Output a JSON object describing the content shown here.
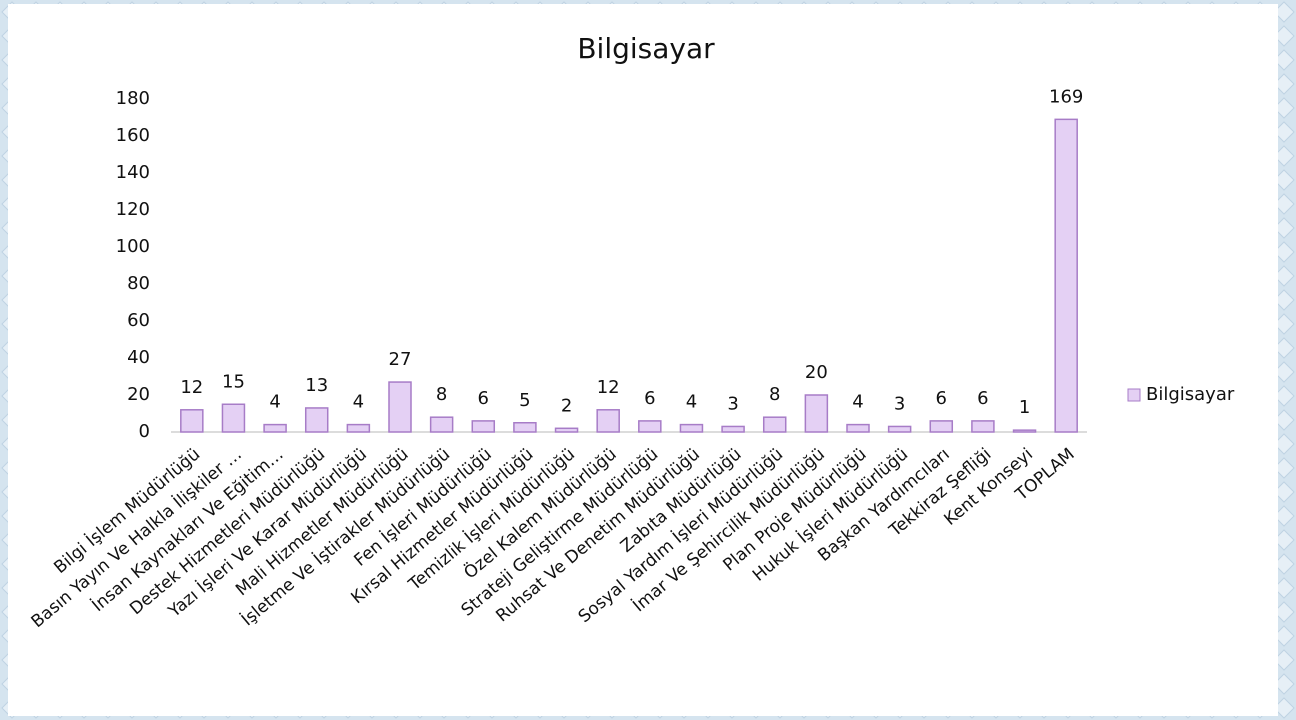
{
  "chart_data": {
    "type": "bar",
    "title": "Bilgisayar",
    "categories": [
      "Bilgi İşlem Müdürlüğü",
      "Basın Yayın Ve Halkla İlişkiler …",
      "İnsan Kaynakları Ve Eğitim…",
      "Destek Hizmetleri Müdürlüğü",
      "Yazı İşleri Ve Karar Müdürlüğü",
      "Mali Hizmetler Müdürlüğü",
      "İşletme Ve İştirakler Müdürlüğü",
      "Fen İşleri Müdürlüğü",
      "Kırsal Hizmetler Müdürlüğü",
      "Temizlik İşleri Müdürlüğü",
      "Özel Kalem Müdürlüğü",
      "Strateji Geliştirme Müdürlüğü",
      "Ruhsat Ve Denetim Müdürlüğü",
      "Zabıta Müdürlüğü",
      "Sosyal Yardım İşleri Müdürlüğü",
      "İmar Ve Şehircilik Müdürlüğü",
      "Plan Proje Müdürlüğü",
      "Hukuk İşleri Müdürlüğü",
      "Başkan Yardımcıları",
      "Tekkiraz Şefliği",
      "Kent Konseyi",
      "TOPLAM"
    ],
    "series": [
      {
        "name": "Bilgisayar",
        "color": "#e4d0f4",
        "values": [
          12,
          15,
          4,
          13,
          4,
          27,
          8,
          6,
          5,
          2,
          12,
          6,
          4,
          3,
          8,
          20,
          4,
          3,
          6,
          6,
          1,
          169
        ]
      }
    ],
    "ylim": [
      0,
      180
    ],
    "yticks": [
      0,
      20,
      40,
      60,
      80,
      100,
      120,
      140,
      160,
      180
    ],
    "grid": false,
    "legend": "right"
  }
}
